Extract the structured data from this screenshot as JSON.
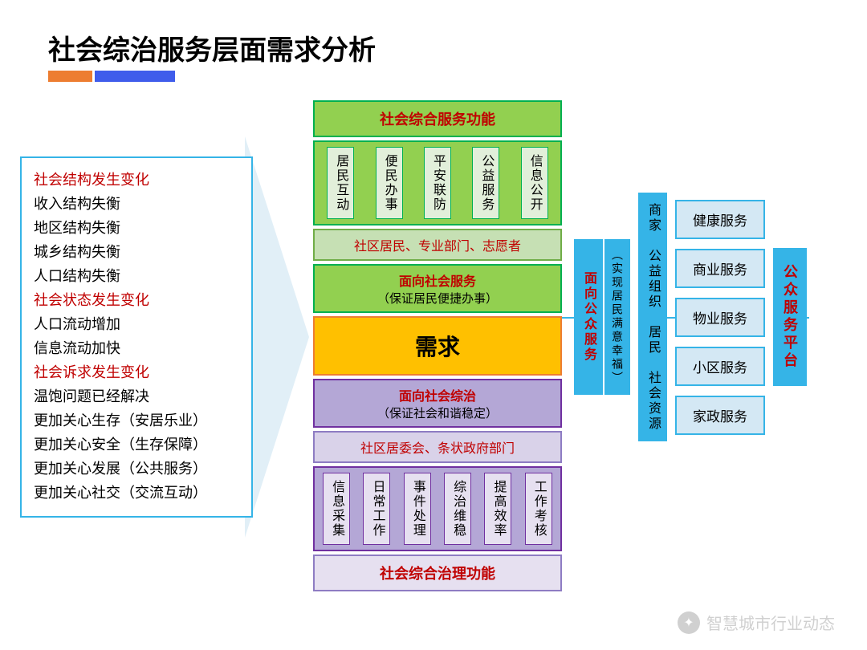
{
  "title": "社会综治服务层面需求分析",
  "left_items": [
    {
      "text": "社会结构发生变化",
      "color": "red"
    },
    {
      "text": "收入结构失衡",
      "color": ""
    },
    {
      "text": "地区结构失衡",
      "color": ""
    },
    {
      "text": "城乡结构失衡",
      "color": ""
    },
    {
      "text": "人口结构失衡",
      "color": ""
    },
    {
      "text": "社会状态发生变化",
      "color": "red"
    },
    {
      "text": "人口流动增加",
      "color": ""
    },
    {
      "text": "信息流动加快",
      "color": ""
    },
    {
      "text": "社会诉求发生变化",
      "color": "red"
    },
    {
      "text": "温饱问题已经解决",
      "color": ""
    },
    {
      "text": "更加关心生存（安居乐业）",
      "color": ""
    },
    {
      "text": "更加关心安全（生存保障）",
      "color": ""
    },
    {
      "text": "更加关心发展（公共服务）",
      "color": ""
    },
    {
      "text": "更加关心社交（交流互动）",
      "color": ""
    }
  ],
  "center": {
    "top_header": "社会综合服务功能",
    "top_items": [
      "居民互动",
      "便民办事",
      "平安联防",
      "公益服务",
      "信息公开"
    ],
    "top_sub": "社区居民、专业部门、志愿者",
    "mid_top_t1": "面向社会服务",
    "mid_top_t2": "（保证居民便捷办事）",
    "demand": "需求",
    "mid_bot_t1": "面向社会综治",
    "mid_bot_t2": "（保证社会和谐稳定）",
    "bot_sub": "社区居委会、条状政府部门",
    "bot_items": [
      "信息采集",
      "日常工作",
      "事件处理",
      "综治维稳",
      "提高效率",
      "工作考核"
    ],
    "bot_header": "社会综合治理功能"
  },
  "right": {
    "bar1_t1": "面向公众服务",
    "bar1_t2": "（实现居民满意幸福）",
    "bar2": "商家　公益组织　居民　社会资源",
    "services": [
      "健康服务",
      "商业服务",
      "物业服务",
      "小区服务",
      "家政服务"
    ],
    "bar3": "公众服务平台"
  },
  "watermark": "智慧城市行业动态",
  "colors": {
    "green": "#92d050",
    "green_border": "#00b050",
    "lgreen": "#c6e0b4",
    "purple": "#b4a7d6",
    "purple_border": "#7030a0",
    "orange": "#ffc000",
    "orange_border": "#ed7d31",
    "blue": "#35b4e7",
    "lblue": "#d4e8f4",
    "red_text": "#c00000",
    "accent_orange": "#ed7d31",
    "accent_blue": "#3f5ceb"
  }
}
